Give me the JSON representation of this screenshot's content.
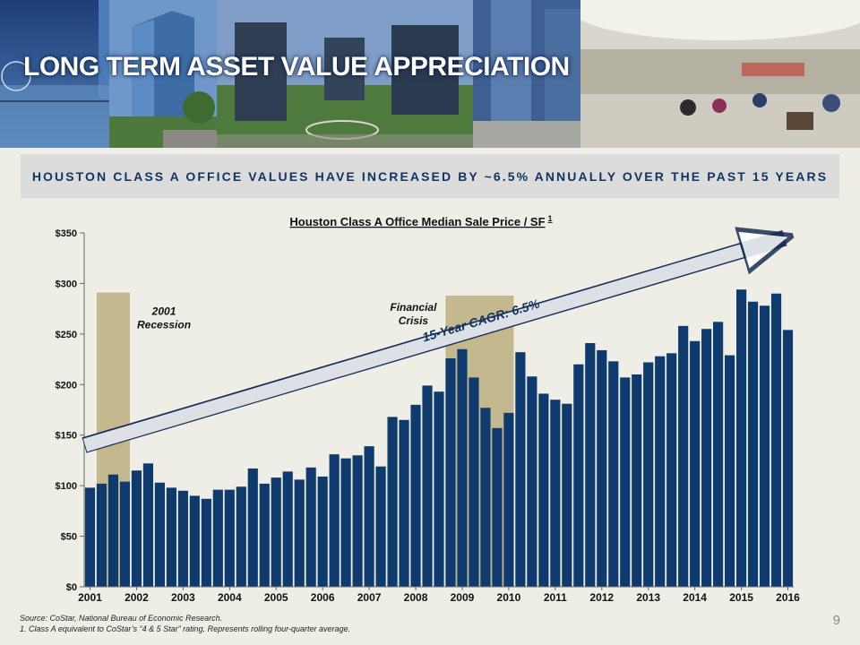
{
  "slide": {
    "title": "LONG TERM ASSET VALUE APPRECIATION",
    "subtitle": "HOUSTON CLASS A OFFICE VALUES HAVE INCREASED BY ~6.5% ANNUALLY OVER THE PAST 15 YEARS",
    "page_number": "9",
    "source": "Source:  CoStar, National Bureau of Economic Research.",
    "footnote": "1.   Class A equivalent to CoStar’s “4 & 5 Star” rating. Represents rolling four-quarter average."
  },
  "chart_data": {
    "type": "bar",
    "title": "Houston Class A Office Median Sale Price / SF",
    "title_superscript": "1",
    "xlabel": "",
    "ylabel": "",
    "ylim": [
      0,
      350
    ],
    "y_ticks": [
      0,
      50,
      100,
      150,
      200,
      250,
      300,
      350
    ],
    "y_tick_labels": [
      "$0",
      "$50",
      "$100",
      "$150",
      "$200",
      "$250",
      "$300",
      "$350"
    ],
    "x_tick_labels": [
      "2001",
      "2002",
      "2003",
      "2004",
      "2005",
      "2006",
      "2007",
      "2008",
      "2009",
      "2010",
      "2011",
      "2012",
      "2013",
      "2014",
      "2015",
      "2016"
    ],
    "grid": false,
    "bar_color": "#0e3a6e",
    "values": [
      98,
      102,
      111,
      104,
      115,
      122,
      103,
      98,
      95,
      90,
      87,
      96,
      96,
      99,
      117,
      102,
      108,
      114,
      106,
      118,
      109,
      131,
      127,
      130,
      139,
      119,
      168,
      165,
      180,
      199,
      193,
      226,
      235,
      207,
      177,
      157,
      172,
      232,
      208,
      191,
      185,
      181,
      220,
      241,
      234,
      223,
      207,
      210,
      222,
      228,
      231,
      258,
      243,
      255,
      262,
      229,
      294,
      282,
      278,
      290,
      254
    ],
    "shaded_periods": [
      {
        "label_lines": [
          "2001",
          "Recession"
        ],
        "start_index": 1,
        "end_index": 3,
        "top": 291,
        "color": "#c4b88f"
      },
      {
        "label_lines": [
          "Financial",
          "Crisis"
        ],
        "start_index": 31,
        "end_index": 36,
        "top": 288,
        "color": "#c4b88f"
      }
    ],
    "trend": {
      "label": "15-Year CAGR: 6.5%",
      "start": [
        0,
        140
      ],
      "end": [
        61,
        345
      ]
    }
  }
}
